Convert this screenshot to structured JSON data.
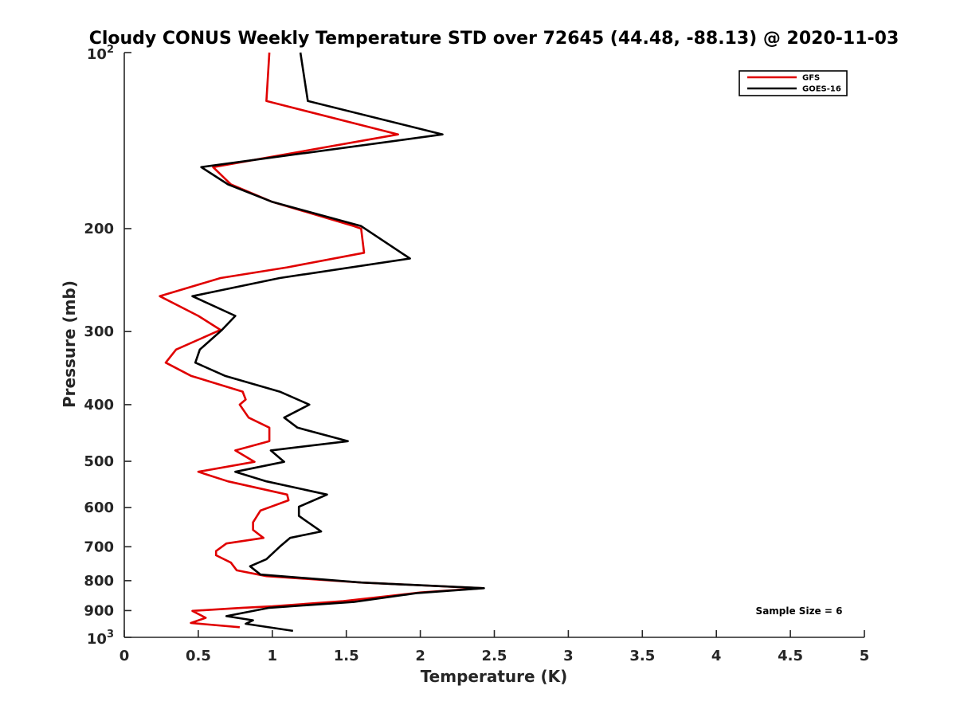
{
  "chart_data": {
    "type": "line",
    "title": "Cloudy CONUS Weekly Temperature STD over 72645 (44.48, -88.13) @ 2020-11-03",
    "xlabel": "Temperature (K)",
    "ylabel": "Pressure (mb)",
    "xlim": [
      0,
      5
    ],
    "ylim": [
      100,
      1000
    ],
    "y_scale": "log",
    "y_reversed": true,
    "x_ticks": [
      "0",
      "0.5",
      "1",
      "1.5",
      "2",
      "2.5",
      "3",
      "3.5",
      "4",
      "4.5",
      "5"
    ],
    "y_ticks": [
      {
        "value": 100,
        "base": "10",
        "exp": "2"
      },
      {
        "value": 200,
        "label": "200"
      },
      {
        "value": 300,
        "label": "300"
      },
      {
        "value": 400,
        "label": "400"
      },
      {
        "value": 500,
        "label": "500"
      },
      {
        "value": 600,
        "label": "600"
      },
      {
        "value": 700,
        "label": "700"
      },
      {
        "value": 800,
        "label": "800"
      },
      {
        "value": 900,
        "label": "900"
      },
      {
        "value": 1000,
        "base": "10",
        "exp": "3"
      }
    ],
    "legend_position": "top-right",
    "grid": false,
    "annotation": "Sample Size = 6",
    "series": [
      {
        "name": "GFS",
        "color": "#e00000",
        "points": [
          [
            0.98,
            100
          ],
          [
            0.96,
            121
          ],
          [
            1.85,
            138
          ],
          [
            0.6,
            157
          ],
          [
            0.72,
            168
          ],
          [
            1.0,
            180
          ],
          [
            1.55,
            198
          ],
          [
            1.6,
            200
          ],
          [
            1.62,
            220
          ],
          [
            1.1,
            233
          ],
          [
            0.65,
            243
          ],
          [
            0.24,
            261
          ],
          [
            0.5,
            282
          ],
          [
            0.65,
            298
          ],
          [
            0.35,
            322
          ],
          [
            0.28,
            339
          ],
          [
            0.45,
            357
          ],
          [
            0.8,
            380
          ],
          [
            0.82,
            392
          ],
          [
            0.78,
            400
          ],
          [
            0.84,
            421
          ],
          [
            0.98,
            438
          ],
          [
            0.98,
            462
          ],
          [
            0.75,
            479
          ],
          [
            0.88,
            501
          ],
          [
            0.5,
            521
          ],
          [
            0.7,
            541
          ],
          [
            1.1,
            570
          ],
          [
            1.11,
            583
          ],
          [
            0.92,
            607
          ],
          [
            0.87,
            636
          ],
          [
            0.87,
            655
          ],
          [
            0.94,
            676
          ],
          [
            0.69,
            691
          ],
          [
            0.62,
            712
          ],
          [
            0.62,
            724
          ],
          [
            0.72,
            745
          ],
          [
            0.76,
            768
          ],
          [
            0.96,
            786
          ],
          [
            1.6,
            806
          ],
          [
            2.42,
            824
          ],
          [
            2.0,
            838
          ],
          [
            1.48,
            867
          ],
          [
            1.0,
            885
          ],
          [
            0.8,
            890
          ],
          [
            0.46,
            901
          ],
          [
            0.55,
            926
          ],
          [
            0.45,
            945
          ],
          [
            0.78,
            961
          ]
        ]
      },
      {
        "name": "GOES-16",
        "color": "#000000",
        "points": [
          [
            1.19,
            100
          ],
          [
            1.24,
            121
          ],
          [
            2.15,
            138
          ],
          [
            0.52,
            157
          ],
          [
            0.7,
            168
          ],
          [
            1.0,
            180
          ],
          [
            1.6,
            198
          ],
          [
            1.93,
            225
          ],
          [
            1.05,
            243
          ],
          [
            0.46,
            261
          ],
          [
            0.75,
            282
          ],
          [
            0.66,
            298
          ],
          [
            0.51,
            322
          ],
          [
            0.48,
            339
          ],
          [
            0.68,
            357
          ],
          [
            1.05,
            380
          ],
          [
            1.25,
            400
          ],
          [
            1.08,
            421
          ],
          [
            1.17,
            438
          ],
          [
            1.51,
            462
          ],
          [
            0.99,
            479
          ],
          [
            1.08,
            501
          ],
          [
            0.75,
            521
          ],
          [
            0.96,
            541
          ],
          [
            1.37,
            570
          ],
          [
            1.18,
            598
          ],
          [
            1.18,
            620
          ],
          [
            1.33,
            659
          ],
          [
            1.12,
            676
          ],
          [
            1.05,
            700
          ],
          [
            0.96,
            735
          ],
          [
            0.85,
            756
          ],
          [
            0.92,
            781
          ],
          [
            1.6,
            806
          ],
          [
            2.43,
            824
          ],
          [
            1.98,
            840
          ],
          [
            1.55,
            870
          ],
          [
            0.98,
            890
          ],
          [
            0.69,
            920
          ],
          [
            0.87,
            935
          ],
          [
            0.82,
            948
          ],
          [
            1.14,
            975
          ]
        ]
      }
    ]
  }
}
